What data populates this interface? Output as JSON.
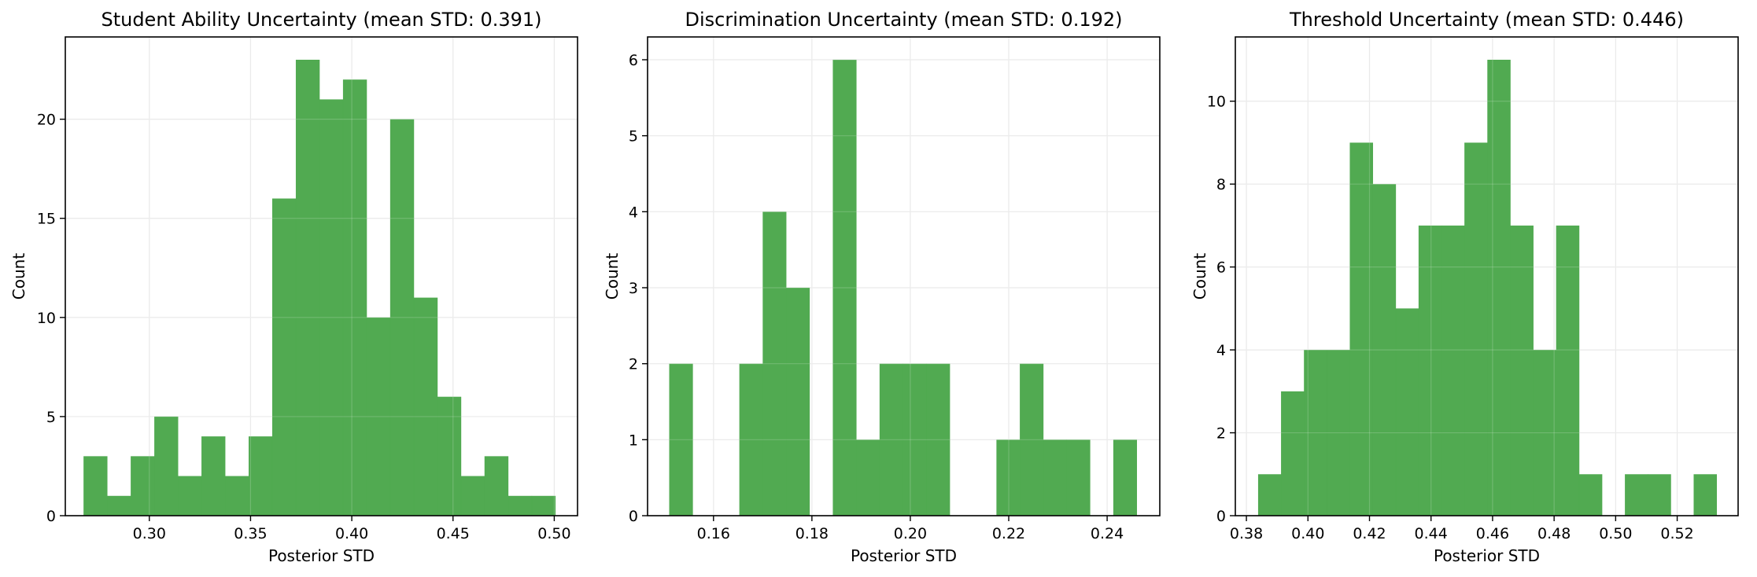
{
  "colors": {
    "bar": "#4ea84e",
    "grid": "#e6e6e6",
    "axis": "#000000"
  },
  "chart_data": [
    {
      "type": "bar",
      "title": "Student Ability Uncertainty (mean STD: 0.391)",
      "xlabel": "Posterior STD",
      "ylabel": "Count",
      "grid": true,
      "xlim": [
        0.2585,
        0.5115
      ],
      "ylim": [
        0,
        24.15
      ],
      "xticks": [
        0.3,
        0.35,
        0.4,
        0.45,
        0.5
      ],
      "xtick_labels": [
        "0.30",
        "0.35",
        "0.40",
        "0.45",
        "0.50"
      ],
      "yticks": [
        0,
        5,
        10,
        15,
        20
      ],
      "ytick_labels": [
        "0",
        "5",
        "10",
        "15",
        "20"
      ],
      "bin_start": 0.2675,
      "bin_width": 0.01165,
      "values": [
        3,
        1,
        3,
        5,
        2,
        4,
        2,
        4,
        16,
        23,
        21,
        22,
        10,
        20,
        11,
        6,
        2,
        3,
        1,
        1
      ]
    },
    {
      "type": "bar",
      "title": "Discrimination Uncertainty (mean STD: 0.192)",
      "xlabel": "Posterior STD",
      "ylabel": "Count",
      "grid": true,
      "xlim": [
        0.1466,
        0.2507
      ],
      "ylim": [
        0,
        6.3
      ],
      "xticks": [
        0.16,
        0.18,
        0.2,
        0.22,
        0.24
      ],
      "xtick_labels": [
        "0.16",
        "0.18",
        "0.20",
        "0.22",
        "0.24"
      ],
      "yticks": [
        0,
        1,
        2,
        3,
        4,
        5,
        6
      ],
      "ytick_labels": [
        "0",
        "1",
        "2",
        "3",
        "4",
        "5",
        "6"
      ],
      "bin_start": 0.151,
      "bin_width": 0.00475,
      "values": [
        2,
        0,
        0,
        2,
        4,
        3,
        0,
        6,
        1,
        2,
        2,
        2,
        0,
        0,
        1,
        2,
        1,
        1,
        0,
        1
      ]
    },
    {
      "type": "bar",
      "title": "Threshold Uncertainty (mean STD: 0.446)",
      "xlabel": "Posterior STD",
      "ylabel": "Count",
      "grid": true,
      "xlim": [
        0.3764,
        0.5398
      ],
      "ylim": [
        0,
        11.55
      ],
      "xticks": [
        0.38,
        0.4,
        0.42,
        0.44,
        0.46,
        0.48,
        0.5,
        0.52
      ],
      "xtick_labels": [
        "0.38",
        "0.40",
        "0.42",
        "0.44",
        "0.46",
        "0.48",
        "0.50",
        "0.52"
      ],
      "yticks": [
        0,
        2,
        4,
        6,
        8,
        10
      ],
      "ytick_labels": [
        "0",
        "2",
        "4",
        "6",
        "8",
        "10"
      ],
      "bin_start": 0.3838,
      "bin_width": 0.00745,
      "values": [
        1,
        3,
        4,
        4,
        9,
        8,
        5,
        7,
        7,
        9,
        11,
        7,
        4,
        7,
        1,
        0,
        1,
        1,
        0,
        1
      ]
    }
  ]
}
